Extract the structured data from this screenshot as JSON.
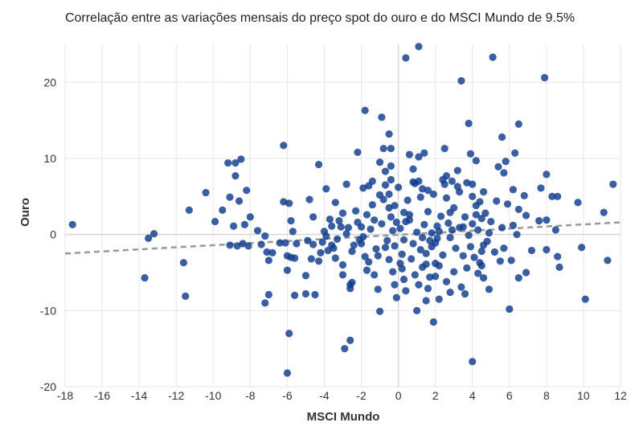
{
  "chart_data": {
    "type": "scatter",
    "title": "Correlação entre as variações mensais do preço spot do ouro e do MSCI Mundo de 9.5%",
    "xlabel": "MSCI Mundo",
    "ylabel": "Ouro",
    "xlim": [
      -18,
      12
    ],
    "ylim": [
      -20,
      25
    ],
    "xticks": [
      -18,
      -16,
      -14,
      -12,
      -10,
      -8,
      -6,
      -4,
      -2,
      0,
      2,
      4,
      6,
      8,
      10,
      12
    ],
    "yticks": [
      -20,
      -10,
      0,
      10,
      20
    ],
    "grid": true,
    "legend": "none",
    "point_color": "#0d3a8c",
    "trendline": {
      "style": "dashed",
      "color": "#999999",
      "points": [
        [
          -18,
          -2.5
        ],
        [
          12,
          1.6
        ]
      ]
    },
    "points": [
      [
        -17.6,
        1.3
      ],
      [
        -13.5,
        -0.5
      ],
      [
        -13.2,
        0.1
      ],
      [
        -13.7,
        -5.7
      ],
      [
        -11.5,
        -8.1
      ],
      [
        -11.6,
        -3.7
      ],
      [
        -11.3,
        3.2
      ],
      [
        -10.4,
        5.5
      ],
      [
        -9.9,
        1.7
      ],
      [
        -9.2,
        9.4
      ],
      [
        -8.8,
        9.4
      ],
      [
        -8.5,
        9.9
      ],
      [
        -8.6,
        4.4
      ],
      [
        -9.1,
        4.9
      ],
      [
        -8.2,
        5.8
      ],
      [
        -8.8,
        7.7
      ],
      [
        -8.9,
        1.1
      ],
      [
        -9.5,
        3.2
      ],
      [
        -9.1,
        -1.4
      ],
      [
        -8.7,
        -1.5
      ],
      [
        -8.4,
        -1.2
      ],
      [
        -8.1,
        -1.5
      ],
      [
        -8.0,
        2.3
      ],
      [
        -8.3,
        1.3
      ],
      [
        -7.4,
        -1.3
      ],
      [
        -7.6,
        0.5
      ],
      [
        -7.2,
        -0.2
      ],
      [
        -7.0,
        -3.4
      ],
      [
        -7.1,
        -2.3
      ],
      [
        -6.8,
        -2.4
      ],
      [
        -7.0,
        -7.9
      ],
      [
        -7.2,
        -9.0
      ],
      [
        -6.2,
        11.7
      ],
      [
        -6.2,
        4.3
      ],
      [
        -5.9,
        4.1
      ],
      [
        -5.8,
        1.8
      ],
      [
        -5.7,
        0.4
      ],
      [
        -6.1,
        -1.1
      ],
      [
        -6.4,
        -1.1
      ],
      [
        -6.0,
        -2.8
      ],
      [
        -5.6,
        -3.1
      ],
      [
        -5.8,
        -3.0
      ],
      [
        -5.5,
        -1.2
      ],
      [
        -5.6,
        -8.0
      ],
      [
        -6.0,
        -4.7
      ],
      [
        -5.0,
        -7.8
      ],
      [
        -4.5,
        -7.9
      ],
      [
        -5.0,
        -5.4
      ],
      [
        -4.9,
        -0.8
      ],
      [
        -4.7,
        -3.2
      ],
      [
        -4.6,
        -1.3
      ],
      [
        -4.3,
        -3.5
      ],
      [
        -4.2,
        -2.4
      ],
      [
        -4.8,
        4.6
      ],
      [
        -4.6,
        2.3
      ],
      [
        -4.3,
        9.2
      ],
      [
        -3.9,
        6.0
      ],
      [
        -4.1,
        -1.0
      ],
      [
        -3.9,
        -0.2
      ],
      [
        -3.7,
        2.0
      ],
      [
        -3.6,
        -1.4
      ],
      [
        -3.5,
        -1.8
      ],
      [
        -3.4,
        4.2
      ],
      [
        -3.2,
        1.8
      ],
      [
        -3.1,
        1.0
      ],
      [
        -3.0,
        -4.0
      ],
      [
        -3.0,
        -5.3
      ],
      [
        -2.8,
        6.6
      ],
      [
        -2.6,
        -7.1
      ],
      [
        -2.6,
        -6.6
      ],
      [
        -2.5,
        -6.3
      ],
      [
        -2.9,
        -15.0
      ],
      [
        -2.6,
        -13.9
      ],
      [
        -2.2,
        10.8
      ],
      [
        -1.8,
        16.3
      ],
      [
        -1.6,
        6.4
      ],
      [
        -2.3,
        3.1
      ],
      [
        -2.0,
        1.0
      ],
      [
        -2.1,
        -0.7
      ],
      [
        -2.4,
        -1.4
      ],
      [
        -1.8,
        -2.9
      ],
      [
        -1.7,
        -4.7
      ],
      [
        -1.3,
        -5.3
      ],
      [
        -1.1,
        -7.2
      ],
      [
        -1.0,
        -10.1
      ],
      [
        -0.9,
        15.4
      ],
      [
        -0.8,
        11.3
      ],
      [
        -1.0,
        9.5
      ],
      [
        -0.7,
        8.3
      ],
      [
        -1.4,
        7.0
      ],
      [
        -0.7,
        6.5
      ],
      [
        -0.5,
        13.2
      ],
      [
        -0.4,
        11.3
      ],
      [
        -0.4,
        9.0
      ],
      [
        -0.5,
        5.3
      ],
      [
        -0.5,
        3.5
      ],
      [
        -0.4,
        2.3
      ],
      [
        -0.2,
        -6.6
      ],
      [
        -0.1,
        -8.3
      ],
      [
        0.1,
        -3.8
      ],
      [
        -0.2,
        -1.5
      ],
      [
        0.2,
        -4.5
      ],
      [
        0.3,
        2.9
      ],
      [
        0.4,
        1.7
      ],
      [
        0.4,
        23.2
      ],
      [
        1.1,
        24.7
      ],
      [
        0.6,
        10.5
      ],
      [
        1.1,
        10.2
      ],
      [
        1.4,
        10.7
      ],
      [
        0.8,
        8.6
      ],
      [
        1.1,
        7.0
      ],
      [
        0.9,
        6.7
      ],
      [
        1.3,
        6.0
      ],
      [
        1.0,
        -10.0
      ],
      [
        1.5,
        -8.7
      ],
      [
        1.9,
        -11.5
      ],
      [
        1.6,
        -7.1
      ],
      [
        2.2,
        -8.5
      ],
      [
        1.7,
        -5.6
      ],
      [
        1.3,
        -4.3
      ],
      [
        2.0,
        -3.8
      ],
      [
        1.5,
        -2.5
      ],
      [
        1.8,
        -1.6
      ],
      [
        2.1,
        -0.5
      ],
      [
        2.2,
        0.4
      ],
      [
        2.5,
        11.3
      ],
      [
        2.6,
        7.7
      ],
      [
        2.5,
        6.6
      ],
      [
        2.9,
        7.0
      ],
      [
        3.2,
        8.4
      ],
      [
        3.4,
        20.2
      ],
      [
        3.8,
        14.6
      ],
      [
        3.9,
        10.6
      ],
      [
        4.2,
        9.7
      ],
      [
        3.7,
        6.8
      ],
      [
        4.0,
        5.0
      ],
      [
        4.2,
        3.8
      ],
      [
        4.5,
        2.1
      ],
      [
        4.6,
        -1.4
      ],
      [
        4.4,
        -3.7
      ],
      [
        4.6,
        -5.7
      ],
      [
        4.9,
        -7.2
      ],
      [
        5.1,
        23.3
      ],
      [
        5.6,
        12.8
      ],
      [
        6.5,
        14.5
      ],
      [
        5.8,
        9.6
      ],
      [
        6.3,
        10.7
      ],
      [
        5.4,
        8.9
      ],
      [
        5.7,
        8.1
      ],
      [
        6.2,
        5.9
      ],
      [
        5.9,
        4.0
      ],
      [
        6.8,
        5.1
      ],
      [
        6.5,
        3.3
      ],
      [
        6.9,
        2.5
      ],
      [
        6.2,
        1.2
      ],
      [
        6.4,
        0.0
      ],
      [
        5.7,
        -1.8
      ],
      [
        6.1,
        -3.4
      ],
      [
        6.5,
        -5.7
      ],
      [
        6.0,
        -9.8
      ],
      [
        6.9,
        -5.0
      ],
      [
        7.2,
        -2.1
      ],
      [
        7.6,
        1.8
      ],
      [
        7.7,
        6.1
      ],
      [
        7.9,
        20.6
      ],
      [
        8.0,
        7.9
      ],
      [
        8.3,
        5.0
      ],
      [
        8.6,
        5.0
      ],
      [
        8.0,
        1.9
      ],
      [
        8.5,
        0.6
      ],
      [
        8.6,
        -2.9
      ],
      [
        8.7,
        -4.3
      ],
      [
        8.0,
        -2.0
      ],
      [
        9.7,
        4.2
      ],
      [
        9.9,
        -1.7
      ],
      [
        10.1,
        -8.5
      ],
      [
        11.1,
        2.9
      ],
      [
        11.3,
        -3.4
      ],
      [
        11.6,
        6.6
      ],
      [
        4.0,
        -16.7
      ],
      [
        -5.9,
        -13.0
      ],
      [
        -6.0,
        -18.2
      ],
      [
        0.1,
        0.8
      ],
      [
        0.3,
        -0.7
      ],
      [
        0.6,
        1.9
      ],
      [
        0.8,
        -1.2
      ],
      [
        1.0,
        0.3
      ],
      [
        1.2,
        -2.0
      ],
      [
        1.4,
        1.3
      ],
      [
        1.6,
        3.0
      ],
      [
        1.8,
        0.2
      ],
      [
        2.0,
        -1.1
      ],
      [
        2.3,
        2.4
      ],
      [
        2.4,
        -2.7
      ],
      [
        2.7,
        1.5
      ],
      [
        2.8,
        -0.4
      ],
      [
        3.0,
        3.5
      ],
      [
        3.1,
        -1.8
      ],
      [
        3.3,
        0.9
      ],
      [
        3.5,
        -2.8
      ],
      [
        3.6,
        2.3
      ],
      [
        3.8,
        -0.1
      ],
      [
        4.0,
        1.4
      ],
      [
        4.1,
        -3.0
      ],
      [
        4.3,
        0.6
      ],
      [
        4.7,
        2.8
      ],
      [
        4.8,
        -0.9
      ],
      [
        5.0,
        1.7
      ],
      [
        5.2,
        -2.3
      ],
      [
        5.3,
        4.4
      ],
      [
        5.5,
        -3.5
      ],
      [
        5.6,
        0.9
      ],
      [
        -0.3,
        0.5
      ],
      [
        -0.6,
        -0.8
      ],
      [
        -0.9,
        1.4
      ],
      [
        -1.2,
        -1.9
      ],
      [
        -1.5,
        0.7
      ],
      [
        -1.7,
        2.6
      ],
      [
        -1.9,
        -0.3
      ],
      [
        -2.2,
        1.6
      ],
      [
        -2.5,
        -2.2
      ],
      [
        -2.7,
        0.9
      ],
      [
        -3.0,
        2.8
      ],
      [
        -3.3,
        -0.6
      ],
      [
        -3.6,
        1.1
      ],
      [
        -3.8,
        -2.1
      ],
      [
        -4.0,
        0.4
      ],
      [
        -0.2,
        3.8
      ],
      [
        0.5,
        4.5
      ],
      [
        1.2,
        4.9
      ],
      [
        1.9,
        5.3
      ],
      [
        2.6,
        4.8
      ],
      [
        3.3,
        5.6
      ],
      [
        4.4,
        4.3
      ],
      [
        -0.8,
        4.6
      ],
      [
        -1.4,
        3.9
      ],
      [
        0.2,
        -2.6
      ],
      [
        0.7,
        -3.2
      ],
      [
        1.5,
        -3.9
      ],
      [
        2.2,
        -4.1
      ],
      [
        3.0,
        -4.9
      ],
      [
        3.7,
        -4.4
      ],
      [
        4.3,
        -5.1
      ],
      [
        -0.5,
        -3.3
      ],
      [
        -1.1,
        -2.8
      ],
      [
        -1.6,
        -3.6
      ],
      [
        0.9,
        -5.3
      ],
      [
        2.6,
        -6.2
      ],
      [
        3.4,
        -6.9
      ],
      [
        0.4,
        -7.4
      ],
      [
        -0.3,
        -4.9
      ],
      [
        1.7,
        -0.8
      ],
      [
        2.9,
        0.6
      ],
      [
        3.9,
        -1.6
      ],
      [
        4.9,
        0.2
      ],
      [
        -0.1,
        1.6
      ],
      [
        0.6,
        2.6
      ],
      [
        1.3,
        -0.4
      ],
      [
        2.1,
        1.1
      ],
      [
        2.8,
        2.9
      ],
      [
        3.5,
        1.0
      ],
      [
        4.2,
        2.6
      ],
      [
        4.5,
        -2.2
      ],
      [
        -0.7,
        -1.7
      ],
      [
        -1.3,
        1.9
      ],
      [
        -2.0,
        -1.2
      ],
      [
        -2.8,
        0.1
      ],
      [
        -3.4,
        -3.1
      ],
      [
        0.0,
        6.2
      ],
      [
        0.8,
        6.9
      ],
      [
        1.6,
        5.8
      ],
      [
        2.4,
        7.2
      ],
      [
        3.2,
        6.3
      ],
      [
        4.0,
        6.6
      ],
      [
        4.6,
        5.6
      ],
      [
        -0.4,
        7.2
      ],
      [
        -1.0,
        5.2
      ],
      [
        -1.9,
        6.1
      ],
      [
        0.3,
        -5.9
      ],
      [
        1.1,
        -6.6
      ],
      [
        2.0,
        -5.5
      ],
      [
        2.8,
        -7.6
      ],
      [
        3.6,
        -7.8
      ],
      [
        4.5,
        -4.1
      ]
    ]
  }
}
